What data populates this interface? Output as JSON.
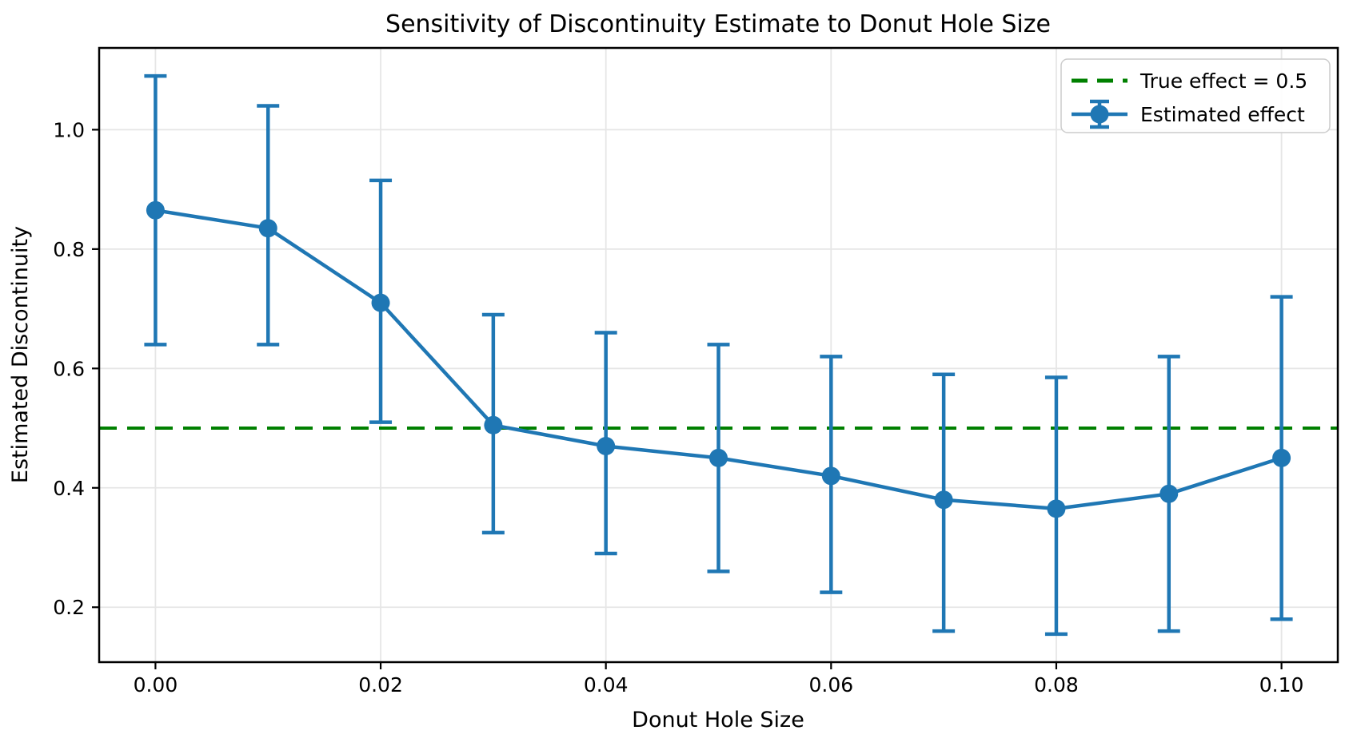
{
  "chart_data": {
    "type": "line",
    "title": "Sensitivity of Discontinuity Estimate to Donut Hole Size",
    "xlabel": "Donut Hole Size",
    "ylabel": "Estimated Discontinuity",
    "x": [
      0.0,
      0.01,
      0.02,
      0.03,
      0.04,
      0.05,
      0.06,
      0.07,
      0.08,
      0.09,
      0.1
    ],
    "series": [
      {
        "name": "Estimated effect",
        "values": [
          0.865,
          0.835,
          0.71,
          0.505,
          0.47,
          0.45,
          0.42,
          0.38,
          0.365,
          0.39,
          0.45
        ],
        "err_low": [
          0.64,
          0.64,
          0.51,
          0.325,
          0.29,
          0.26,
          0.225,
          0.16,
          0.155,
          0.16,
          0.18
        ],
        "err_high": [
          1.09,
          1.04,
          0.915,
          0.69,
          0.66,
          0.64,
          0.62,
          0.59,
          0.585,
          0.62,
          0.72
        ],
        "color": "#1f77b4",
        "marker": "circle",
        "style": "solid"
      }
    ],
    "reference_line": {
      "label": "True effect = 0.5",
      "value": 0.5,
      "color": "#008000",
      "style": "dashed"
    },
    "xlim": [
      -0.005,
      0.105
    ],
    "ylim": [
      0.108,
      1.137
    ],
    "xticks": [
      "0.00",
      "0.02",
      "0.04",
      "0.06",
      "0.08",
      "0.10"
    ],
    "xtick_values": [
      0.0,
      0.02,
      0.04,
      0.06,
      0.08,
      0.1
    ],
    "yticks": [
      "0.2",
      "0.4",
      "0.6",
      "0.8",
      "1.0"
    ],
    "ytick_values": [
      0.2,
      0.4,
      0.6,
      0.8,
      1.0
    ],
    "grid": true,
    "legend": {
      "position": "upper right",
      "entries": [
        "True effect = 0.5",
        "Estimated effect"
      ]
    }
  }
}
